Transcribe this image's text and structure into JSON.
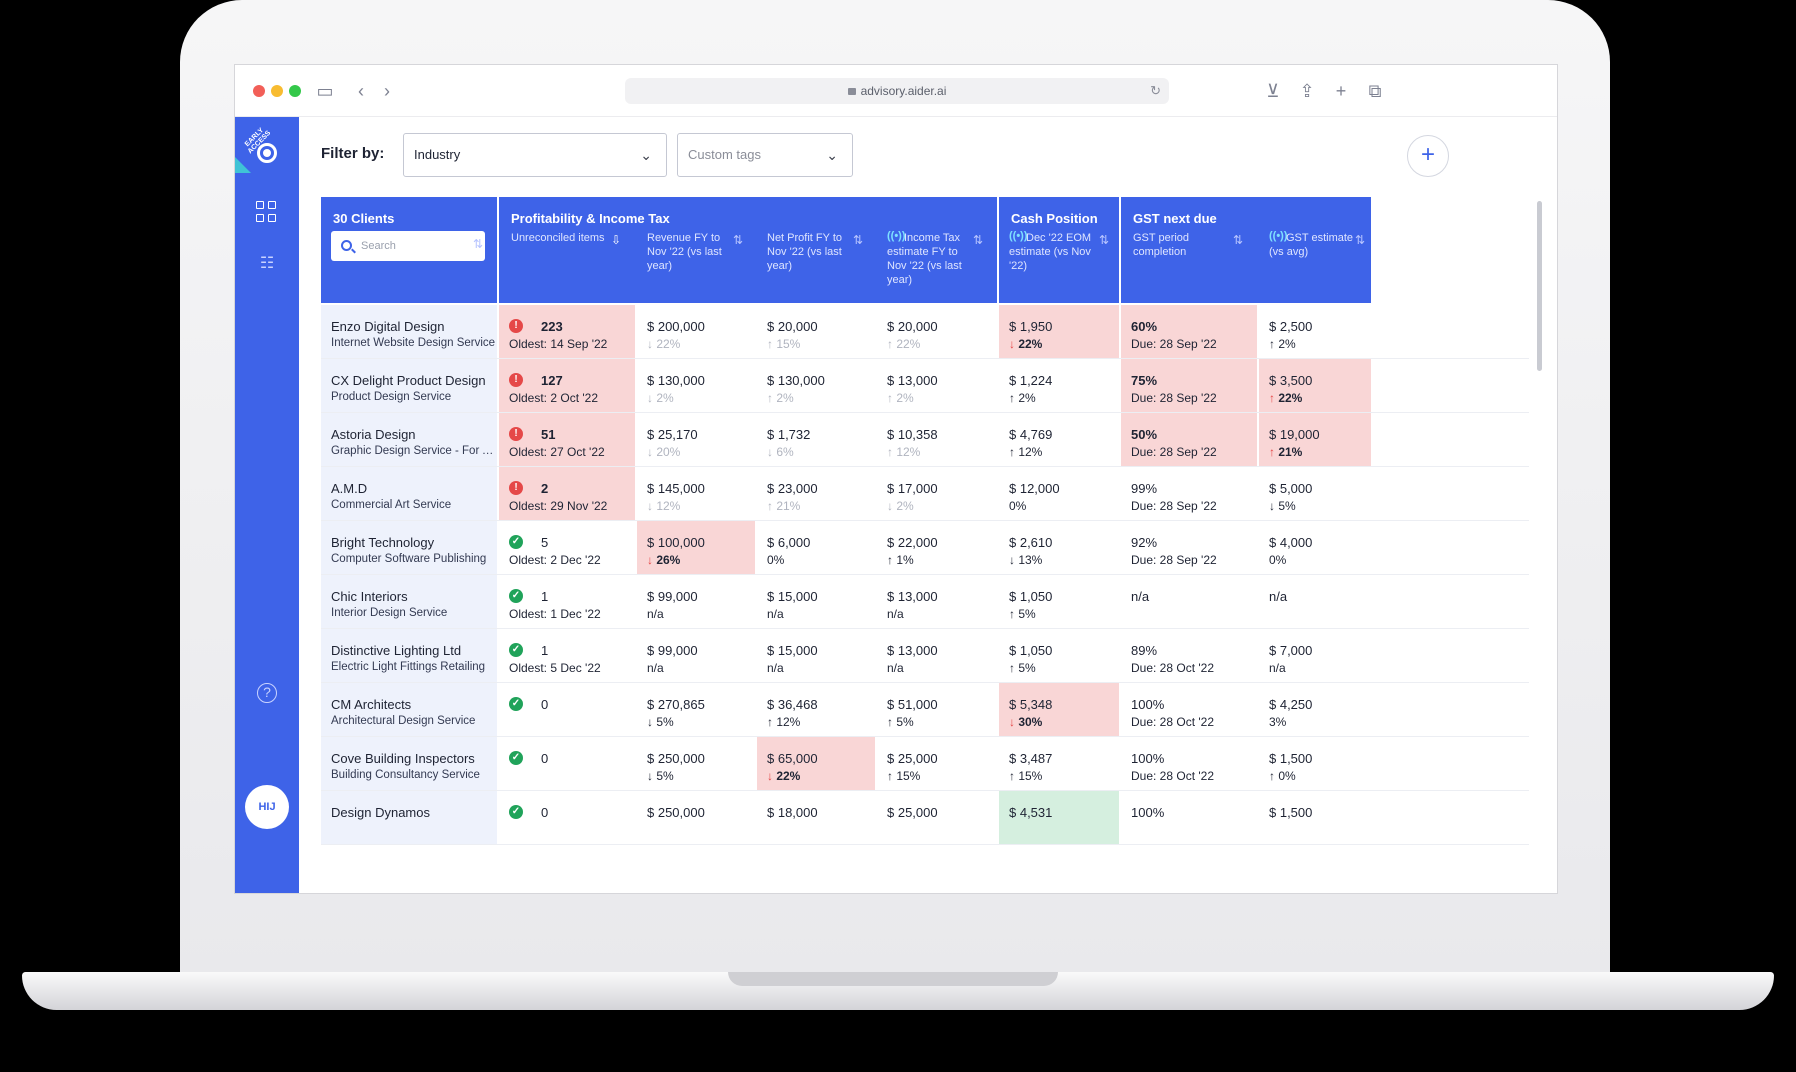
{
  "browser": {
    "url": "advisory.aider.ai",
    "traffic_lights": [
      "#f25f58",
      "#f8bc31",
      "#34c84a"
    ]
  },
  "sidebar": {
    "badge": "EARLY ACCESS",
    "avatar_text": "HIJ"
  },
  "filter": {
    "label": "Filter by:",
    "industry": "Industry",
    "custom_tags_placeholder": "Custom tags"
  },
  "table": {
    "clients_header": "30 Clients",
    "search_placeholder": "Search",
    "groups": {
      "profitability": "Profitability & Income Tax",
      "cash": "Cash Position",
      "gst": "GST next due"
    },
    "columns": {
      "unreconciled": "Unreconciled items",
      "revenue": "Revenue FY to Nov '22 (vs last year)",
      "net_profit": "Net Profit FY to Nov '22 (vs last year)",
      "income_tax": "Income Tax estimate FY to Nov '22 (vs last year)",
      "cash": "Dec '22 EOM estimate (vs Nov '22)",
      "gst_period": "GST period completion",
      "gst_estimate": "GST estimate (vs avg)"
    },
    "rows": [
      {
        "name": "Enzo Digital Design",
        "industry": "Internet Website Design Service",
        "status": "err",
        "count": "223",
        "oldest": "Oldest: 14 Sep '22",
        "unrec_hl": "bad",
        "revenue": "$ 200,000",
        "revenue_ch": "↓ 22%",
        "revenue_hl": "",
        "revenue_muted": true,
        "profit": "$ 20,000",
        "profit_ch": "↑ 15%",
        "profit_hl": "",
        "profit_muted": true,
        "tax": "$ 20,000",
        "tax_ch": "↑ 22%",
        "tax_muted": true,
        "cash": "$ 1,950",
        "cash_ch": "↓ 22%",
        "cash_hl": "bad",
        "gst_pct": "60%",
        "gst_due": "Due: 28 Sep '22",
        "gst_hl": "bad",
        "gst_est": "$ 2,500",
        "gst_est_ch": "↑ 2%",
        "gst_est_hl": ""
      },
      {
        "name": "CX Delight Product Design",
        "industry": "Product Design Service",
        "status": "err",
        "count": "127",
        "oldest": "Oldest: 2 Oct '22",
        "unrec_hl": "bad",
        "revenue": "$ 130,000",
        "revenue_ch": "↓ 2%",
        "revenue_hl": "",
        "revenue_muted": true,
        "profit": "$ 130,000",
        "profit_ch": "↑ 2%",
        "profit_hl": "",
        "profit_muted": true,
        "tax": "$ 13,000",
        "tax_ch": "↑ 2%",
        "tax_muted": true,
        "cash": "$ 1,224",
        "cash_ch": "↑ 2%",
        "cash_hl": "",
        "gst_pct": "75%",
        "gst_due": "Due: 28 Sep '22",
        "gst_hl": "bad",
        "gst_est": "$ 3,500",
        "gst_est_ch": "↑ 22%",
        "gst_est_hl": "bad"
      },
      {
        "name": "Astoria Design",
        "industry": "Graphic Design Service - For Ad...",
        "status": "err",
        "count": "51",
        "oldest": "Oldest: 27 Oct '22",
        "unrec_hl": "bad",
        "revenue": "$ 25,170",
        "revenue_ch": "↓ 20%",
        "revenue_hl": "",
        "revenue_muted": true,
        "profit": "$ 1,732",
        "profit_ch": "↓ 6%",
        "profit_hl": "",
        "profit_muted": true,
        "tax": "$ 10,358",
        "tax_ch": "↑ 12%",
        "tax_muted": true,
        "cash": "$ 4,769",
        "cash_ch": "↑ 12%",
        "cash_hl": "",
        "gst_pct": "50%",
        "gst_due": "Due: 28 Sep '22",
        "gst_hl": "bad",
        "gst_est": "$ 19,000",
        "gst_est_ch": "↑ 21%",
        "gst_est_hl": "bad"
      },
      {
        "name": "A.M.D",
        "industry": "Commercial Art Service",
        "status": "err",
        "count": "2",
        "oldest": "Oldest: 29 Nov '22",
        "unrec_hl": "bad",
        "revenue": "$ 145,000",
        "revenue_ch": "↓ 12%",
        "revenue_hl": "",
        "revenue_muted": true,
        "profit": "$ 23,000",
        "profit_ch": "↑ 21%",
        "profit_hl": "",
        "profit_muted": true,
        "tax": "$ 17,000",
        "tax_ch": "↓ 2%",
        "tax_muted": true,
        "cash": "$ 12,000",
        "cash_ch": "0%",
        "cash_hl": "",
        "gst_pct": "99%",
        "gst_due": "Due: 28 Sep '22",
        "gst_hl": "",
        "gst_est": "$ 5,000",
        "gst_est_ch": "↓ 5%",
        "gst_est_hl": ""
      },
      {
        "name": "Bright Technology",
        "industry": "Computer Software Publishing",
        "status": "ok",
        "count": "5",
        "oldest": "Oldest: 2 Dec '22",
        "unrec_hl": "",
        "revenue": "$ 100,000",
        "revenue_ch": "↓ 26%",
        "revenue_hl": "bad",
        "revenue_muted": false,
        "profit": "$ 6,000",
        "profit_ch": "0%",
        "profit_hl": "",
        "profit_muted": false,
        "tax": "$ 22,000",
        "tax_ch": "↑ 1%",
        "tax_muted": false,
        "cash": "$ 2,610",
        "cash_ch": "↓ 13%",
        "cash_hl": "",
        "gst_pct": "92%",
        "gst_due": "Due: 28 Sep '22",
        "gst_hl": "",
        "gst_est": "$ 4,000",
        "gst_est_ch": "0%",
        "gst_est_hl": ""
      },
      {
        "name": "Chic Interiors",
        "industry": "Interior Design Service",
        "status": "ok",
        "count": "1",
        "oldest": "Oldest: 1 Dec '22",
        "unrec_hl": "",
        "revenue": "$ 99,000",
        "revenue_ch": "n/a",
        "revenue_hl": "",
        "revenue_muted": false,
        "profit": "$ 15,000",
        "profit_ch": "n/a",
        "profit_hl": "",
        "profit_muted": false,
        "tax": "$ 13,000",
        "tax_ch": "n/a",
        "tax_muted": false,
        "cash": "$ 1,050",
        "cash_ch": "↑ 5%",
        "cash_hl": "",
        "gst_pct": "n/a",
        "gst_due": "",
        "gst_hl": "",
        "gst_est": "n/a",
        "gst_est_ch": "",
        "gst_est_hl": ""
      },
      {
        "name": "Distinctive Lighting Ltd",
        "industry": "Electric Light Fittings Retailing",
        "status": "ok",
        "count": "1",
        "oldest": "Oldest: 5 Dec '22",
        "unrec_hl": "",
        "revenue": "$ 99,000",
        "revenue_ch": "n/a",
        "revenue_hl": "",
        "revenue_muted": false,
        "profit": "$ 15,000",
        "profit_ch": "n/a",
        "profit_hl": "",
        "profit_muted": false,
        "tax": "$ 13,000",
        "tax_ch": "n/a",
        "tax_muted": false,
        "cash": "$ 1,050",
        "cash_ch": "↑ 5%",
        "cash_hl": "",
        "gst_pct": "89%",
        "gst_due": "Due: 28 Oct '22",
        "gst_hl": "",
        "gst_est": "$ 7,000",
        "gst_est_ch": "n/a",
        "gst_est_hl": ""
      },
      {
        "name": "CM Architects",
        "industry": "Architectural Design Service",
        "status": "ok",
        "count": "0",
        "oldest": "",
        "unrec_hl": "",
        "revenue": "$ 270,865",
        "revenue_ch": "↓ 5%",
        "revenue_hl": "",
        "revenue_muted": false,
        "profit": "$ 36,468",
        "profit_ch": "↑ 12%",
        "profit_hl": "",
        "profit_muted": false,
        "tax": "$ 51,000",
        "tax_ch": "↑ 5%",
        "tax_muted": false,
        "cash": "$ 5,348",
        "cash_ch": "↓ 30%",
        "cash_hl": "bad",
        "gst_pct": "100%",
        "gst_due": "Due: 28 Oct '22",
        "gst_hl": "",
        "gst_est": "$ 4,250",
        "gst_est_ch": "3%",
        "gst_est_hl": ""
      },
      {
        "name": "Cove Building Inspectors",
        "industry": "Building Consultancy Service",
        "status": "ok",
        "count": "0",
        "oldest": "",
        "unrec_hl": "",
        "revenue": "$ 250,000",
        "revenue_ch": "↓ 5%",
        "revenue_hl": "",
        "revenue_muted": false,
        "profit": "$ 65,000",
        "profit_ch": "↓ 22%",
        "profit_hl": "bad",
        "profit_muted": false,
        "tax": "$ 25,000",
        "tax_ch": "↑ 15%",
        "tax_muted": false,
        "cash": "$ 3,487",
        "cash_ch": "↑ 15%",
        "cash_hl": "",
        "gst_pct": "100%",
        "gst_due": "Due: 28 Oct '22",
        "gst_hl": "",
        "gst_est": "$ 1,500",
        "gst_est_ch": "↑ 0%",
        "gst_est_hl": ""
      },
      {
        "name": "Design Dynamos",
        "industry": "",
        "status": "ok",
        "count": "0",
        "oldest": "",
        "unrec_hl": "",
        "revenue": "$ 250,000",
        "revenue_ch": "",
        "revenue_hl": "",
        "revenue_muted": false,
        "profit": "$ 18,000",
        "profit_ch": "",
        "profit_hl": "",
        "profit_muted": false,
        "tax": "$ 25,000",
        "tax_ch": "",
        "tax_muted": false,
        "cash": "$ 4,531",
        "cash_ch": "",
        "cash_hl": "good",
        "gst_pct": "100%",
        "gst_due": "",
        "gst_hl": "",
        "gst_est": "$ 1,500",
        "gst_est_ch": "",
        "gst_est_hl": ""
      }
    ]
  }
}
